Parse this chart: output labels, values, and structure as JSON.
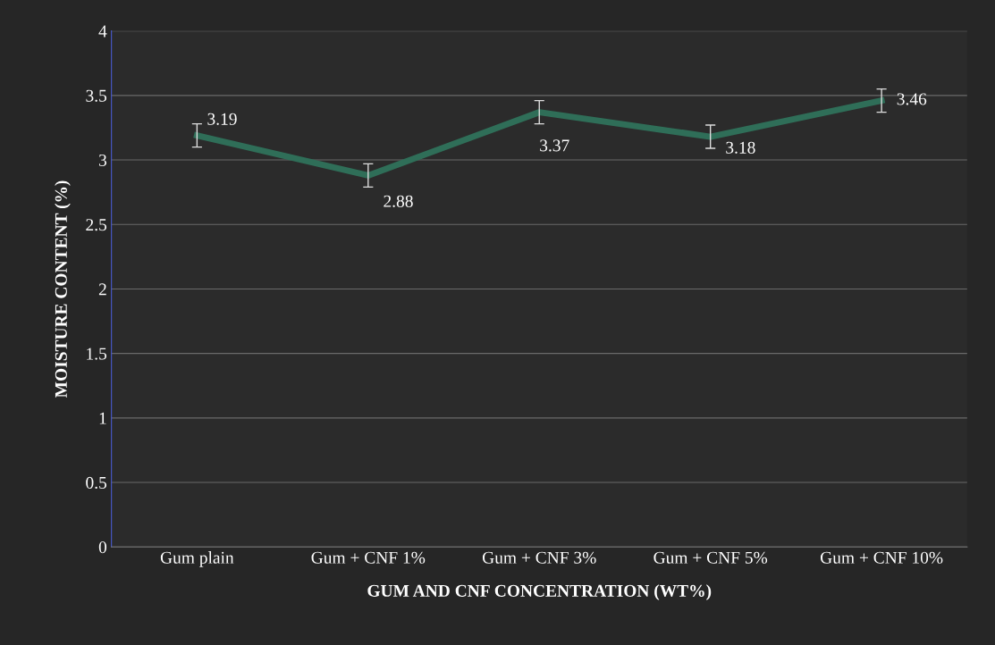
{
  "chart_data": {
    "type": "line",
    "xlabel": "GUM AND CNF CONCENTRATION (WT%)",
    "ylabel": "MOISTURE CONTENT (%)",
    "categories": [
      "Gum plain",
      "Gum + CNF 1%",
      "Gum + CNF 3%",
      "Gum + CNF 5%",
      "Gum + CNF 10%"
    ],
    "series": [
      {
        "color": "#2f6e58",
        "values": [
          3.19,
          2.88,
          3.37,
          3.18,
          3.46
        ],
        "errors": [
          0.09,
          0.09,
          0.09,
          0.09,
          0.09
        ]
      }
    ],
    "ylim": [
      0,
      4
    ],
    "yticks": [
      0,
      0.5,
      1,
      1.5,
      2,
      2.5,
      3,
      3.5,
      4
    ],
    "grid": "y",
    "data_labels": true,
    "marker": "none",
    "line_style": "solid"
  }
}
